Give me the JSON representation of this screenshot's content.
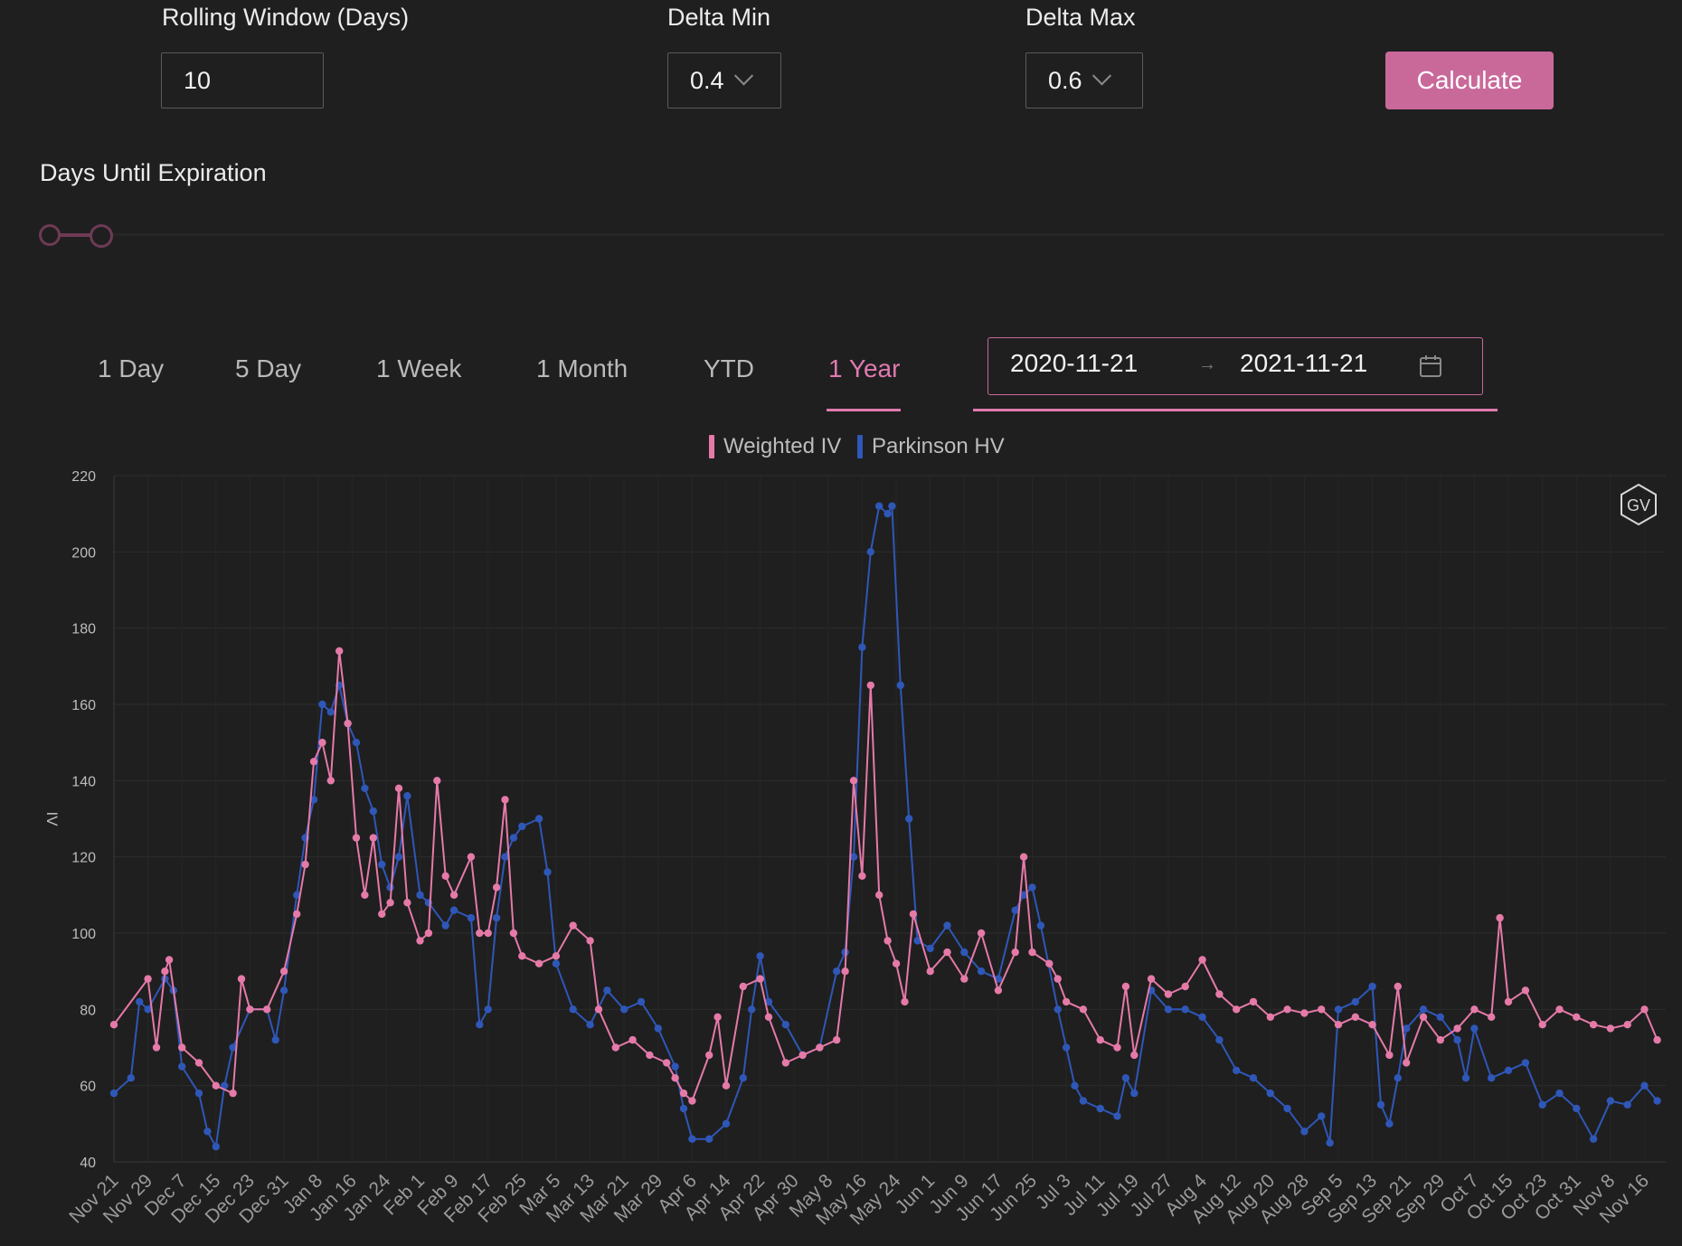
{
  "controls": {
    "rolling_window_label": "Rolling Window (Days)",
    "rolling_window_value": "10",
    "delta_min_label": "Delta Min",
    "delta_min_value": "0.4",
    "delta_max_label": "Delta Max",
    "delta_max_value": "0.6",
    "calculate_label": "Calculate",
    "dte_label": "Days Until Expiration"
  },
  "tabs": [
    {
      "label": "1 Day"
    },
    {
      "label": "5 Day"
    },
    {
      "label": "1 Week"
    },
    {
      "label": "1 Month"
    },
    {
      "label": "YTD"
    },
    {
      "label": "1 Year"
    }
  ],
  "active_tab": "1 Year",
  "date_range": {
    "start": "2020-11-21",
    "separator": "→",
    "end": "2021-11-21",
    "icon": "calendar-icon"
  },
  "colors": {
    "accent": "#e07ab0",
    "iv": "#e57aa8",
    "hv": "#2f57b8",
    "button": "#c9699a"
  },
  "badge": "GV",
  "chart_data": {
    "type": "line",
    "title": "",
    "xlabel": "",
    "ylabel": "IV",
    "ylim": [
      40,
      220
    ],
    "yticks": [
      40,
      60,
      80,
      100,
      120,
      140,
      160,
      180,
      200,
      220
    ],
    "legend": "top-center",
    "grid": true,
    "x_tick_labels": [
      "Nov 21",
      "Nov 29",
      "Dec 7",
      "Dec 15",
      "Dec 23",
      "Dec 31",
      "Jan 8",
      "Jan 16",
      "Jan 24",
      "Feb 1",
      "Feb 9",
      "Feb 17",
      "Feb 25",
      "Mar 5",
      "Mar 13",
      "Mar 21",
      "Mar 29",
      "Apr 6",
      "Apr 14",
      "Apr 22",
      "Apr 30",
      "May 8",
      "May 16",
      "May 24",
      "Jun 1",
      "Jun 9",
      "Jun 17",
      "Jun 25",
      "Jul 3",
      "Jul 11",
      "Jul 19",
      "Jul 27",
      "Aug 4",
      "Aug 12",
      "Aug 20",
      "Aug 28",
      "Sep 5",
      "Sep 13",
      "Sep 21",
      "Sep 29",
      "Oct 7",
      "Oct 15",
      "Oct 23",
      "Oct 31",
      "Nov 8",
      "Nov 16"
    ],
    "series": [
      {
        "name": "Weighted IV",
        "color": "#e57aa8",
        "points": [
          [
            "Nov 21",
            76
          ],
          [
            "Nov 29",
            88
          ],
          [
            "Dec 1",
            70
          ],
          [
            "Dec 3",
            90
          ],
          [
            "Dec 4",
            93
          ],
          [
            "Dec 7",
            70
          ],
          [
            "Dec 11",
            66
          ],
          [
            "Dec 15",
            60
          ],
          [
            "Dec 19",
            58
          ],
          [
            "Dec 21",
            88
          ],
          [
            "Dec 23",
            80
          ],
          [
            "Dec 27",
            80
          ],
          [
            "Dec 31",
            90
          ],
          [
            "Jan 3",
            105
          ],
          [
            "Jan 5",
            118
          ],
          [
            "Jan 7",
            145
          ],
          [
            "Jan 9",
            150
          ],
          [
            "Jan 11",
            140
          ],
          [
            "Jan 13",
            174
          ],
          [
            "Jan 15",
            155
          ],
          [
            "Jan 17",
            125
          ],
          [
            "Jan 19",
            110
          ],
          [
            "Jan 21",
            125
          ],
          [
            "Jan 23",
            105
          ],
          [
            "Jan 25",
            108
          ],
          [
            "Jan 27",
            138
          ],
          [
            "Jan 29",
            108
          ],
          [
            "Feb 1",
            98
          ],
          [
            "Feb 3",
            100
          ],
          [
            "Feb 5",
            140
          ],
          [
            "Feb 7",
            115
          ],
          [
            "Feb 9",
            110
          ],
          [
            "Feb 13",
            120
          ],
          [
            "Feb 15",
            100
          ],
          [
            "Feb 17",
            100
          ],
          [
            "Feb 19",
            112
          ],
          [
            "Feb 21",
            135
          ],
          [
            "Feb 23",
            100
          ],
          [
            "Feb 25",
            94
          ],
          [
            "Mar 1",
            92
          ],
          [
            "Mar 5",
            94
          ],
          [
            "Mar 9",
            102
          ],
          [
            "Mar 13",
            98
          ],
          [
            "Mar 15",
            80
          ],
          [
            "Mar 19",
            70
          ],
          [
            "Mar 23",
            72
          ],
          [
            "Mar 27",
            68
          ],
          [
            "Mar 31",
            66
          ],
          [
            "Apr 2",
            62
          ],
          [
            "Apr 4",
            58
          ],
          [
            "Apr 6",
            56
          ],
          [
            "Apr 10",
            68
          ],
          [
            "Apr 12",
            78
          ],
          [
            "Apr 14",
            60
          ],
          [
            "Apr 18",
            86
          ],
          [
            "Apr 22",
            88
          ],
          [
            "Apr 24",
            78
          ],
          [
            "Apr 28",
            66
          ],
          [
            "May 2",
            68
          ],
          [
            "May 6",
            70
          ],
          [
            "May 10",
            72
          ],
          [
            "May 12",
            90
          ],
          [
            "May 14",
            140
          ],
          [
            "May 16",
            115
          ],
          [
            "May 18",
            165
          ],
          [
            "May 20",
            110
          ],
          [
            "May 22",
            98
          ],
          [
            "May 24",
            92
          ],
          [
            "May 26",
            82
          ],
          [
            "May 28",
            105
          ],
          [
            "Jun 1",
            90
          ],
          [
            "Jun 5",
            95
          ],
          [
            "Jun 9",
            88
          ],
          [
            "Jun 13",
            100
          ],
          [
            "Jun 17",
            85
          ],
          [
            "Jun 21",
            95
          ],
          [
            "Jun 23",
            120
          ],
          [
            "Jun 25",
            95
          ],
          [
            "Jun 29",
            92
          ],
          [
            "Jul 1",
            88
          ],
          [
            "Jul 3",
            82
          ],
          [
            "Jul 7",
            80
          ],
          [
            "Jul 11",
            72
          ],
          [
            "Jul 15",
            70
          ],
          [
            "Jul 17",
            86
          ],
          [
            "Jul 19",
            68
          ],
          [
            "Jul 23",
            88
          ],
          [
            "Jul 27",
            84
          ],
          [
            "Jul 31",
            86
          ],
          [
            "Aug 4",
            93
          ],
          [
            "Aug 8",
            84
          ],
          [
            "Aug 12",
            80
          ],
          [
            "Aug 16",
            82
          ],
          [
            "Aug 20",
            78
          ],
          [
            "Aug 24",
            80
          ],
          [
            "Aug 28",
            79
          ],
          [
            "Sep 1",
            80
          ],
          [
            "Sep 5",
            76
          ],
          [
            "Sep 9",
            78
          ],
          [
            "Sep 13",
            76
          ],
          [
            "Sep 17",
            68
          ],
          [
            "Sep 19",
            86
          ],
          [
            "Sep 21",
            66
          ],
          [
            "Sep 25",
            78
          ],
          [
            "Sep 29",
            72
          ],
          [
            "Oct 3",
            75
          ],
          [
            "Oct 7",
            80
          ],
          [
            "Oct 11",
            78
          ],
          [
            "Oct 13",
            104
          ],
          [
            "Oct 15",
            82
          ],
          [
            "Oct 19",
            85
          ],
          [
            "Oct 23",
            76
          ],
          [
            "Oct 27",
            80
          ],
          [
            "Oct 31",
            78
          ],
          [
            "Nov 4",
            76
          ],
          [
            "Nov 8",
            75
          ],
          [
            "Nov 12",
            76
          ],
          [
            "Nov 16",
            80
          ],
          [
            "Nov 19",
            72
          ]
        ]
      },
      {
        "name": "Parkinson HV",
        "color": "#2f57b8",
        "points": [
          [
            "Nov 21",
            58
          ],
          [
            "Nov 25",
            62
          ],
          [
            "Nov 27",
            82
          ],
          [
            "Nov 29",
            80
          ],
          [
            "Dec 3",
            88
          ],
          [
            "Dec 5",
            85
          ],
          [
            "Dec 7",
            65
          ],
          [
            "Dec 11",
            58
          ],
          [
            "Dec 13",
            48
          ],
          [
            "Dec 15",
            44
          ],
          [
            "Dec 17",
            60
          ],
          [
            "Dec 19",
            70
          ],
          [
            "Dec 23",
            80
          ],
          [
            "Dec 27",
            80
          ],
          [
            "Dec 29",
            72
          ],
          [
            "Dec 31",
            85
          ],
          [
            "Jan 3",
            110
          ],
          [
            "Jan 5",
            125
          ],
          [
            "Jan 7",
            135
          ],
          [
            "Jan 9",
            160
          ],
          [
            "Jan 11",
            158
          ],
          [
            "Jan 13",
            165
          ],
          [
            "Jan 15",
            155
          ],
          [
            "Jan 17",
            150
          ],
          [
            "Jan 19",
            138
          ],
          [
            "Jan 21",
            132
          ],
          [
            "Jan 23",
            118
          ],
          [
            "Jan 25",
            112
          ],
          [
            "Jan 27",
            120
          ],
          [
            "Jan 29",
            136
          ],
          [
            "Feb 1",
            110
          ],
          [
            "Feb 3",
            108
          ],
          [
            "Feb 7",
            102
          ],
          [
            "Feb 9",
            106
          ],
          [
            "Feb 13",
            104
          ],
          [
            "Feb 15",
            76
          ],
          [
            "Feb 17",
            80
          ],
          [
            "Feb 19",
            104
          ],
          [
            "Feb 21",
            120
          ],
          [
            "Feb 23",
            125
          ],
          [
            "Feb 25",
            128
          ],
          [
            "Mar 1",
            130
          ],
          [
            "Mar 3",
            116
          ],
          [
            "Mar 5",
            92
          ],
          [
            "Mar 9",
            80
          ],
          [
            "Mar 13",
            76
          ],
          [
            "Mar 17",
            85
          ],
          [
            "Mar 21",
            80
          ],
          [
            "Mar 25",
            82
          ],
          [
            "Mar 29",
            75
          ],
          [
            "Apr 2",
            65
          ],
          [
            "Apr 4",
            54
          ],
          [
            "Apr 6",
            46
          ],
          [
            "Apr 10",
            46
          ],
          [
            "Apr 14",
            50
          ],
          [
            "Apr 18",
            62
          ],
          [
            "Apr 20",
            80
          ],
          [
            "Apr 22",
            94
          ],
          [
            "Apr 24",
            82
          ],
          [
            "Apr 28",
            76
          ],
          [
            "May 2",
            68
          ],
          [
            "May 6",
            70
          ],
          [
            "May 10",
            90
          ],
          [
            "May 12",
            95
          ],
          [
            "May 14",
            120
          ],
          [
            "May 16",
            175
          ],
          [
            "May 18",
            200
          ],
          [
            "May 20",
            212
          ],
          [
            "May 22",
            210
          ],
          [
            "May 23",
            212
          ],
          [
            "May 25",
            165
          ],
          [
            "May 27",
            130
          ],
          [
            "May 29",
            98
          ],
          [
            "Jun 1",
            96
          ],
          [
            "Jun 5",
            102
          ],
          [
            "Jun 9",
            95
          ],
          [
            "Jun 13",
            90
          ],
          [
            "Jun 17",
            88
          ],
          [
            "Jun 21",
            106
          ],
          [
            "Jun 23",
            110
          ],
          [
            "Jun 25",
            112
          ],
          [
            "Jun 27",
            102
          ],
          [
            "Jul 1",
            80
          ],
          [
            "Jul 3",
            70
          ],
          [
            "Jul 5",
            60
          ],
          [
            "Jul 7",
            56
          ],
          [
            "Jul 11",
            54
          ],
          [
            "Jul 15",
            52
          ],
          [
            "Jul 17",
            62
          ],
          [
            "Jul 19",
            58
          ],
          [
            "Jul 23",
            85
          ],
          [
            "Jul 27",
            80
          ],
          [
            "Jul 31",
            80
          ],
          [
            "Aug 4",
            78
          ],
          [
            "Aug 8",
            72
          ],
          [
            "Aug 12",
            64
          ],
          [
            "Aug 16",
            62
          ],
          [
            "Aug 20",
            58
          ],
          [
            "Aug 24",
            54
          ],
          [
            "Aug 28",
            48
          ],
          [
            "Sep 1",
            52
          ],
          [
            "Sep 3",
            45
          ],
          [
            "Sep 5",
            80
          ],
          [
            "Sep 9",
            82
          ],
          [
            "Sep 13",
            86
          ],
          [
            "Sep 15",
            55
          ],
          [
            "Sep 17",
            50
          ],
          [
            "Sep 19",
            62
          ],
          [
            "Sep 21",
            75
          ],
          [
            "Sep 25",
            80
          ],
          [
            "Sep 29",
            78
          ],
          [
            "Oct 3",
            72
          ],
          [
            "Oct 5",
            62
          ],
          [
            "Oct 7",
            75
          ],
          [
            "Oct 11",
            62
          ],
          [
            "Oct 15",
            64
          ],
          [
            "Oct 19",
            66
          ],
          [
            "Oct 23",
            55
          ],
          [
            "Oct 27",
            58
          ],
          [
            "Oct 31",
            54
          ],
          [
            "Nov 4",
            46
          ],
          [
            "Nov 8",
            56
          ],
          [
            "Nov 12",
            55
          ],
          [
            "Nov 16",
            60
          ],
          [
            "Nov 19",
            56
          ]
        ]
      }
    ]
  }
}
